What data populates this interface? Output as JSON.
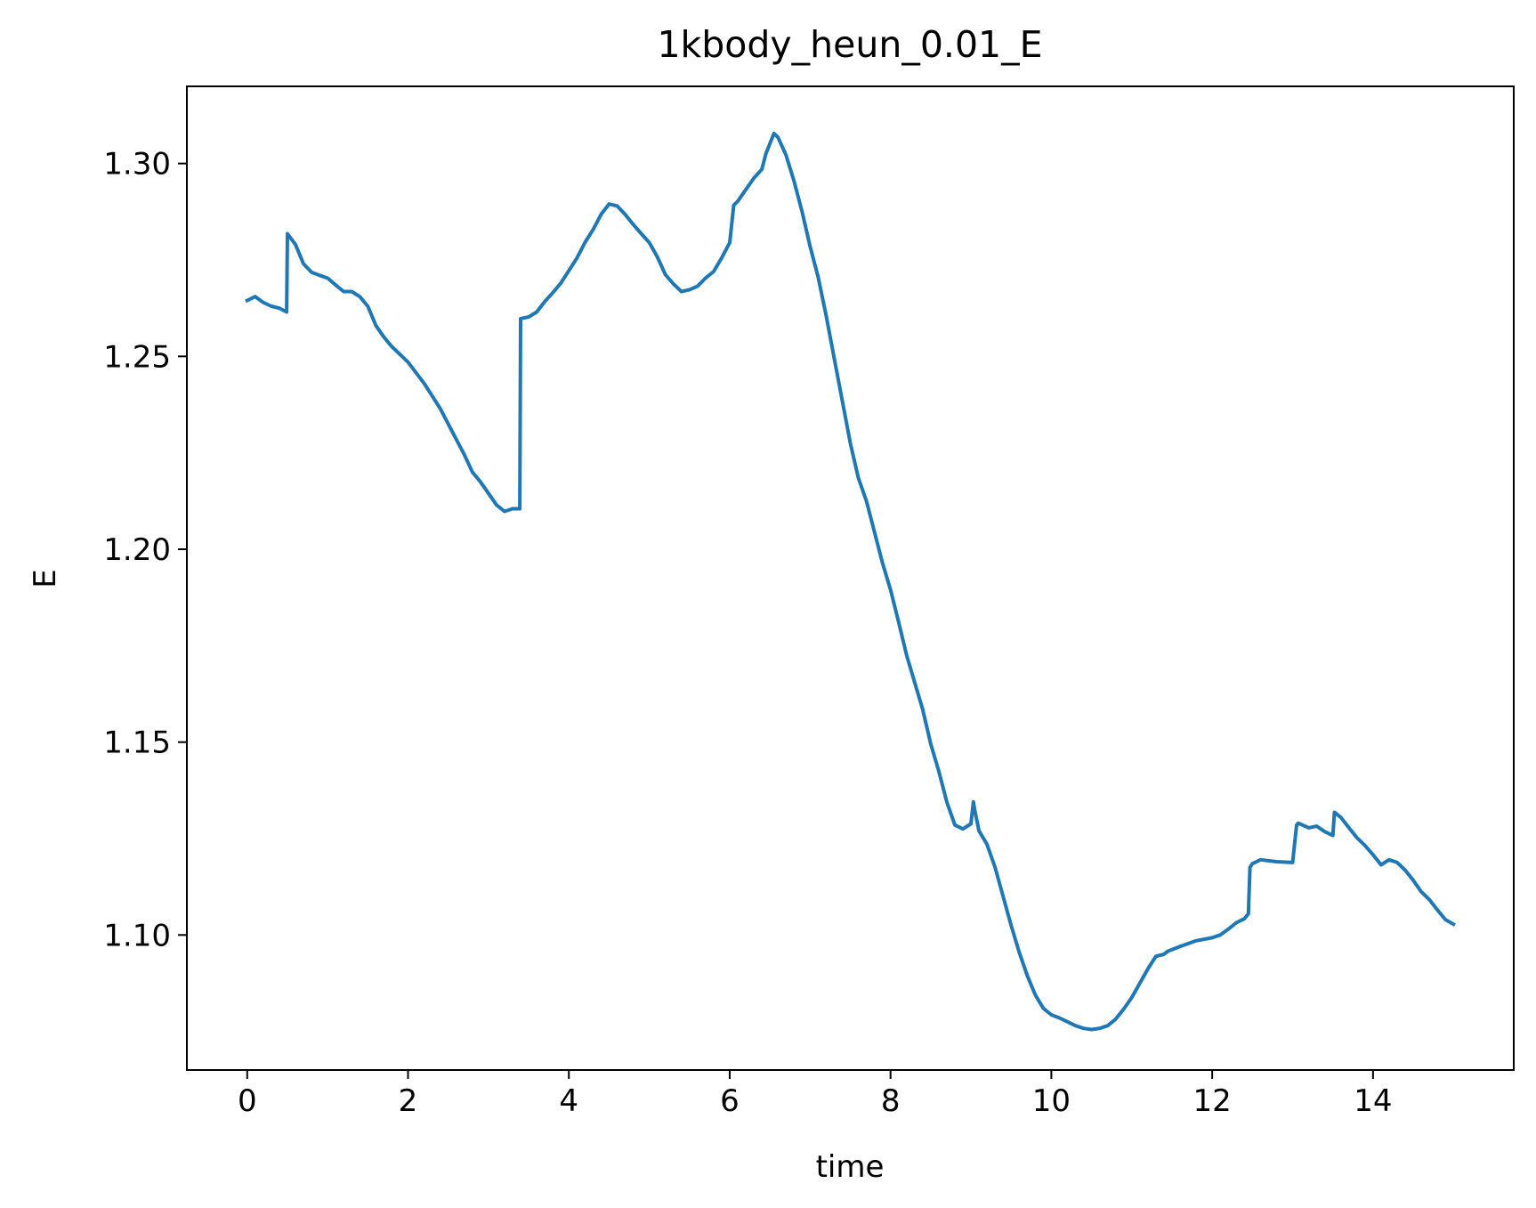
{
  "chart_data": {
    "type": "line",
    "title": "1kbody_heun_0.01_E",
    "xlabel": "time",
    "ylabel": "E",
    "xlim": [
      -0.75,
      15.75
    ],
    "ylim": [
      1.065,
      1.32
    ],
    "xticks": [
      0,
      2,
      4,
      6,
      8,
      10,
      12,
      14
    ],
    "xtick_labels": [
      "0",
      "2",
      "4",
      "6",
      "8",
      "10",
      "12",
      "14"
    ],
    "yticks": [
      1.1,
      1.15,
      1.2,
      1.25,
      1.3
    ],
    "ytick_labels": [
      "1.10",
      "1.15",
      "1.20",
      "1.25",
      "1.30"
    ],
    "grid": false,
    "series": [
      {
        "color": "#1f77b4",
        "x": [
          0,
          0.1,
          0.2,
          0.3,
          0.4,
          0.49,
          0.5,
          0.6,
          0.7,
          0.8,
          0.9,
          1.0,
          1.1,
          1.2,
          1.3,
          1.4,
          1.5,
          1.6,
          1.7,
          1.8,
          1.9,
          2.0,
          2.2,
          2.4,
          2.6,
          2.7,
          2.8,
          2.9,
          3.0,
          3.1,
          3.2,
          3.3,
          3.39,
          3.4,
          3.5,
          3.6,
          3.7,
          3.8,
          3.9,
          4.0,
          4.1,
          4.2,
          4.3,
          4.4,
          4.5,
          4.6,
          4.7,
          4.8,
          4.9,
          5.0,
          5.1,
          5.2,
          5.3,
          5.4,
          5.5,
          5.6,
          5.7,
          5.8,
          5.9,
          6.0,
          6.05,
          6.1,
          6.2,
          6.3,
          6.4,
          6.45,
          6.55,
          6.6,
          6.7,
          6.8,
          6.9,
          7.0,
          7.1,
          7.2,
          7.3,
          7.4,
          7.5,
          7.6,
          7.7,
          7.8,
          7.9,
          8.0,
          8.1,
          8.2,
          8.3,
          8.4,
          8.5,
          8.6,
          8.7,
          8.8,
          8.9,
          9.0,
          9.03,
          9.05,
          9.1,
          9.2,
          9.3,
          9.4,
          9.5,
          9.6,
          9.7,
          9.8,
          9.9,
          10.0,
          10.1,
          10.2,
          10.3,
          10.4,
          10.5,
          10.6,
          10.7,
          10.8,
          10.9,
          11.0,
          11.1,
          11.2,
          11.3,
          11.4,
          11.45,
          11.6,
          11.8,
          12.0,
          12.1,
          12.2,
          12.3,
          12.4,
          12.45,
          12.47,
          12.5,
          12.6,
          12.8,
          13.0,
          13.05,
          13.07,
          13.2,
          13.3,
          13.4,
          13.5,
          13.52,
          13.6,
          13.7,
          13.8,
          13.9,
          14.0,
          14.1,
          14.2,
          14.3,
          14.4,
          14.5,
          14.6,
          14.7,
          14.8,
          14.9,
          15.0
        ],
        "values": [
          1.2645,
          1.2655,
          1.264,
          1.263,
          1.2625,
          1.2615,
          1.2818,
          1.279,
          1.274,
          1.2718,
          1.271,
          1.2703,
          1.2685,
          1.2668,
          1.2668,
          1.2655,
          1.263,
          1.258,
          1.255,
          1.2525,
          1.2505,
          1.2485,
          1.243,
          1.2365,
          1.2285,
          1.2245,
          1.22,
          1.2175,
          1.2145,
          1.2115,
          1.2098,
          1.2105,
          1.2105,
          1.2598,
          1.2602,
          1.2615,
          1.2642,
          1.2665,
          1.269,
          1.2722,
          1.2755,
          1.2795,
          1.2828,
          1.2868,
          1.2895,
          1.289,
          1.2868,
          1.2842,
          1.2818,
          1.2795,
          1.2758,
          1.2712,
          1.2688,
          1.2668,
          1.2673,
          1.2682,
          1.2703,
          1.272,
          1.2755,
          1.2795,
          1.2892,
          1.2902,
          1.2932,
          1.2962,
          1.2985,
          1.3025,
          1.3078,
          1.3068,
          1.3022,
          1.2955,
          1.2875,
          1.2785,
          1.2705,
          1.2605,
          1.2495,
          1.2385,
          1.2275,
          1.2185,
          1.2125,
          1.2045,
          1.1965,
          1.1895,
          1.1812,
          1.1725,
          1.1655,
          1.1585,
          1.1495,
          1.1425,
          1.1345,
          1.1285,
          1.1275,
          1.1288,
          1.1345,
          1.132,
          1.127,
          1.1235,
          1.1175,
          1.11,
          1.1025,
          1.0955,
          1.0895,
          1.0845,
          1.081,
          1.0793,
          1.0785,
          1.0775,
          1.0765,
          1.0758,
          1.0755,
          1.0758,
          1.0765,
          1.0782,
          1.0808,
          1.0838,
          1.0875,
          1.0912,
          1.0945,
          1.095,
          1.0958,
          1.097,
          1.0985,
          1.0993,
          1.1,
          1.1015,
          1.1032,
          1.1042,
          1.1055,
          1.1175,
          1.1185,
          1.1195,
          1.119,
          1.1188,
          1.1285,
          1.129,
          1.1278,
          1.1282,
          1.1268,
          1.1258,
          1.1318,
          1.1305,
          1.1278,
          1.1252,
          1.1232,
          1.1208,
          1.1182,
          1.1195,
          1.1188,
          1.1168,
          1.1142,
          1.1112,
          1.1092,
          1.1065,
          1.104,
          1.1028
        ]
      }
    ]
  }
}
